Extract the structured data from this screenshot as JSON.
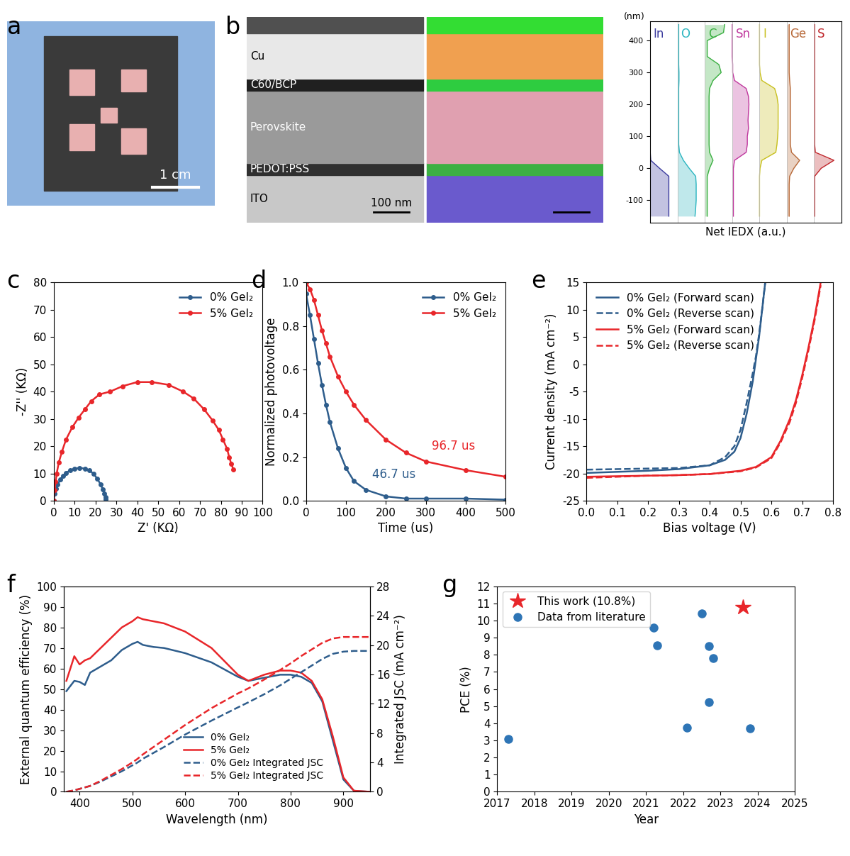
{
  "chart_data": [
    {
      "type": "image",
      "title": "a",
      "annotations": [
        "1 cm"
      ]
    },
    {
      "type": "profile",
      "title": "b",
      "layers": [
        "Cu",
        "C60/BCP",
        "Perovskite",
        "PEDOT:PSS",
        "ITO"
      ],
      "annotations": [
        "100 nm"
      ],
      "ylabel": "(nm)",
      "xlabel": "Net IEDX (a.u.)",
      "y": [
        -150,
        -125,
        -100,
        -75,
        -50,
        -25,
        0,
        25,
        50,
        75,
        100,
        125,
        150,
        175,
        200,
        225,
        250,
        275,
        300,
        325,
        350,
        375,
        400,
        425,
        450
      ],
      "ylim": [
        -170,
        460
      ],
      "yticks": [
        -100,
        0,
        100,
        200,
        300,
        400
      ],
      "tick_labels": "y",
      "series": [
        {
          "name": "In",
          "color": "#3b3b9e",
          "values": [
            0.8,
            0.8,
            0.8,
            0.8,
            0.8,
            0.8,
            0.4,
            0.02,
            0,
            0,
            0,
            0,
            0,
            0,
            0,
            0,
            0,
            0,
            0,
            0,
            0,
            0,
            0,
            0,
            0
          ]
        },
        {
          "name": "O",
          "color": "#2bb5c0",
          "values": [
            0.75,
            0.78,
            0.8,
            0.8,
            0.8,
            0.78,
            0.5,
            0.25,
            0.08,
            0.05,
            0.05,
            0.05,
            0.05,
            0.05,
            0.05,
            0.05,
            0.05,
            0.06,
            0.06,
            0.05,
            0.05,
            0.05,
            0.05,
            0.05,
            0.05
          ]
        },
        {
          "name": "C",
          "color": "#3cb043",
          "values": [
            0.1,
            0.1,
            0.1,
            0.1,
            0.1,
            0.1,
            0.2,
            0.35,
            0.2,
            0.18,
            0.18,
            0.18,
            0.18,
            0.18,
            0.18,
            0.18,
            0.2,
            0.35,
            0.7,
            0.6,
            0.1,
            0.1,
            0.1,
            0.8,
            0.85
          ]
        },
        {
          "name": "Sn",
          "color": "#c0399e",
          "values": [
            0.05,
            0.05,
            0.05,
            0.05,
            0.05,
            0.05,
            0.05,
            0.1,
            0.6,
            0.65,
            0.65,
            0.7,
            0.68,
            0.7,
            0.72,
            0.7,
            0.6,
            0.1,
            0.02,
            0.02,
            0,
            0,
            0,
            0,
            0
          ]
        },
        {
          "name": "I",
          "color": "#c8c020",
          "values": [
            0,
            0,
            0,
            0,
            0,
            0,
            0.02,
            0.1,
            0.7,
            0.75,
            0.78,
            0.8,
            0.8,
            0.8,
            0.8,
            0.75,
            0.65,
            0.1,
            0.02,
            0,
            0,
            0,
            0,
            0,
            0
          ]
        },
        {
          "name": "Ge",
          "color": "#b86a3a",
          "values": [
            0.1,
            0.1,
            0.1,
            0.1,
            0.1,
            0.12,
            0.3,
            0.55,
            0.2,
            0.15,
            0.15,
            0.15,
            0.15,
            0.15,
            0.15,
            0.15,
            0.15,
            0.12,
            0.1,
            0.1,
            0.1,
            0.1,
            0.1,
            0.1,
            0.1
          ]
        },
        {
          "name": "S",
          "color": "#c0282d",
          "values": [
            0.02,
            0.02,
            0.02,
            0.02,
            0.02,
            0.02,
            0.3,
            0.85,
            0.05,
            0.02,
            0.02,
            0.02,
            0.02,
            0.02,
            0.02,
            0.02,
            0.02,
            0.02,
            0.02,
            0.02,
            0.02,
            0.02,
            0.02,
            0.02,
            0.02
          ]
        }
      ]
    },
    {
      "type": "line",
      "title": "c",
      "xlabel": "Z' (KΩ)",
      "ylabel": "-Z'' (KΩ)",
      "xlim": [
        0,
        100
      ],
      "xticks": [
        0,
        10,
        20,
        30,
        40,
        50,
        60,
        70,
        80,
        90,
        100
      ],
      "ylim": [
        0,
        80
      ],
      "yticks": [
        0,
        10,
        20,
        30,
        40,
        50,
        60,
        70,
        80
      ],
      "legend": "upper right",
      "series": [
        {
          "name": "0% GeI₂",
          "color": "#2e5d8c",
          "marker": "circle",
          "line_style": "solid",
          "x": [
            0,
            0.5,
            1.2,
            2,
            3.2,
            4.5,
            6,
            8,
            10,
            12.5,
            15,
            17,
            19,
            21,
            22.5,
            23.5,
            24.3,
            24.8,
            25
          ],
          "values": [
            0,
            2.5,
            4.5,
            6,
            7.7,
            9,
            10.2,
            11.2,
            11.8,
            12,
            11.8,
            11.2,
            10,
            8,
            6,
            4.2,
            2.5,
            1.2,
            0.5
          ]
        },
        {
          "name": "5% GeI₂",
          "color": "#e8262a",
          "marker": "circle",
          "line_style": "solid",
          "x": [
            0,
            0.5,
            1,
            1.5,
            2.5,
            4,
            6,
            9,
            12,
            15,
            18,
            22,
            27,
            33,
            40,
            47,
            55,
            62,
            67,
            72,
            76,
            79,
            81,
            83,
            84,
            85,
            86
          ],
          "values": [
            0,
            4,
            7,
            10,
            14,
            18,
            22.5,
            27,
            30.5,
            33.5,
            36.5,
            39,
            40,
            42,
            43.5,
            43.5,
            42.5,
            40,
            37.5,
            33.5,
            29.5,
            26,
            22.5,
            19,
            16,
            13.5,
            11.5
          ]
        }
      ]
    },
    {
      "type": "line",
      "title": "d",
      "xlabel": "Time (us)",
      "ylabel": "Normalized photovoltage",
      "xlim": [
        0,
        500
      ],
      "xticks": [
        0,
        100,
        200,
        300,
        400,
        500
      ],
      "ylim": [
        0.0,
        1.0
      ],
      "yticks": [
        0.0,
        0.2,
        0.4,
        0.6,
        0.8,
        1.0
      ],
      "legend": "upper right",
      "series": [
        {
          "name": "0% GeI₂",
          "color": "#2e5d8c",
          "marker": "circle",
          "line_style": "solid",
          "annotations": [
            "46.7 us"
          ],
          "x": [
            0,
            10,
            20,
            30,
            40,
            50,
            60,
            80,
            100,
            120,
            150,
            200,
            250,
            300,
            400,
            500
          ],
          "values": [
            0.95,
            0.85,
            0.74,
            0.63,
            0.53,
            0.44,
            0.36,
            0.24,
            0.15,
            0.09,
            0.05,
            0.02,
            0.01,
            0.01,
            0.01,
            0.005
          ]
        },
        {
          "name": "5% GeI₂",
          "color": "#e8262a",
          "marker": "circle",
          "line_style": "solid",
          "annotations": [
            "96.7 us"
          ],
          "x": [
            0,
            10,
            20,
            30,
            40,
            50,
            60,
            80,
            100,
            120,
            150,
            200,
            250,
            300,
            400,
            500
          ],
          "values": [
            1.0,
            0.97,
            0.92,
            0.85,
            0.78,
            0.72,
            0.66,
            0.57,
            0.5,
            0.44,
            0.37,
            0.28,
            0.22,
            0.18,
            0.14,
            0.11
          ]
        }
      ]
    },
    {
      "type": "line",
      "title": "e",
      "xlabel": "Bias voltage (V)",
      "ylabel": "Current density (mA cm⁻²)",
      "xlim": [
        0.0,
        0.8
      ],
      "xticks": [
        0.0,
        0.1,
        0.2,
        0.3,
        0.4,
        0.5,
        0.6,
        0.7,
        0.8
      ],
      "ylim": [
        -25,
        15
      ],
      "yticks": [
        -25,
        -20,
        -15,
        -10,
        -5,
        0,
        5,
        10,
        15
      ],
      "legend": "upper left",
      "series": [
        {
          "name": "0% GeI₂ (Forward scan)",
          "color": "#2e5d8c",
          "marker": "none",
          "line_style": "solid",
          "x": [
            0,
            0.1,
            0.2,
            0.3,
            0.4,
            0.45,
            0.48,
            0.5,
            0.52,
            0.54,
            0.55,
            0.56,
            0.57,
            0.58
          ],
          "values": [
            -19.9,
            -19.7,
            -19.5,
            -19.2,
            -18.5,
            -17.5,
            -16,
            -13.5,
            -9,
            -3,
            1,
            5,
            10,
            15
          ]
        },
        {
          "name": "0% GeI₂ (Reverse scan)",
          "color": "#2e5d8c",
          "marker": "none",
          "line_style": "dashed",
          "x": [
            0,
            0.1,
            0.2,
            0.3,
            0.4,
            0.45,
            0.48,
            0.5,
            0.52,
            0.54,
            0.55,
            0.56,
            0.57,
            0.58
          ],
          "values": [
            -19.3,
            -19.2,
            -19.1,
            -19.0,
            -18.5,
            -17,
            -15,
            -12,
            -7,
            -1.5,
            1.5,
            5.5,
            10,
            15
          ]
        },
        {
          "name": "5% GeI₂ (Forward scan)",
          "color": "#e8262a",
          "marker": "none",
          "line_style": "solid",
          "x": [
            0,
            0.1,
            0.2,
            0.3,
            0.4,
            0.5,
            0.55,
            0.6,
            0.63,
            0.66,
            0.68,
            0.7,
            0.72,
            0.74,
            0.76
          ],
          "values": [
            -20.6,
            -20.5,
            -20.4,
            -20.3,
            -20.1,
            -19.5,
            -18.8,
            -17,
            -14,
            -10,
            -6.5,
            -2,
            3,
            8.5,
            15
          ]
        },
        {
          "name": "5% GeI₂ (Reverse scan)",
          "color": "#e8262a",
          "marker": "none",
          "line_style": "dashed",
          "x": [
            0,
            0.1,
            0.2,
            0.3,
            0.4,
            0.5,
            0.55,
            0.6,
            0.63,
            0.66,
            0.68,
            0.7,
            0.72,
            0.74,
            0.76
          ],
          "values": [
            -20.8,
            -20.6,
            -20.4,
            -20.3,
            -20.1,
            -19.6,
            -18.9,
            -17.2,
            -14.3,
            -10.5,
            -7,
            -2.5,
            2.5,
            8,
            14.5
          ]
        }
      ]
    },
    {
      "type": "line",
      "title": "f",
      "xlabel": "Wavelength (nm)",
      "ylabel": "External quantum efficiency (%)",
      "y2label": "Integrated JSC (mA cm⁻²)",
      "xlim": [
        370,
        950
      ],
      "xticks": [
        400,
        500,
        600,
        700,
        800,
        900
      ],
      "ylim": [
        0,
        100
      ],
      "yticks": [
        0,
        10,
        20,
        30,
        40,
        50,
        60,
        70,
        80,
        90,
        100
      ],
      "y2lim": [
        0,
        28
      ],
      "y2ticks": [
        0,
        4,
        8,
        12,
        16,
        20,
        24,
        28
      ],
      "legend": "lower center",
      "x": [
        375,
        390,
        400,
        410,
        420,
        440,
        460,
        480,
        500,
        510,
        520,
        540,
        560,
        600,
        650,
        700,
        720,
        750,
        780,
        800,
        820,
        840,
        860,
        880,
        900,
        920,
        950
      ],
      "series": [
        {
          "name": "0% GeI₂",
          "color": "#2e5d8c",
          "marker": "none",
          "line_style": "solid",
          "values": [
            49,
            54,
            53.5,
            52,
            58,
            61,
            64,
            69,
            72,
            73,
            71.5,
            70.5,
            70,
            67.5,
            63,
            56,
            54,
            55.5,
            57,
            57,
            56,
            53,
            44,
            25,
            6,
            0.5,
            0
          ]
        },
        {
          "name": "5% GeI₂",
          "color": "#e8262a",
          "marker": "none",
          "line_style": "solid",
          "values": [
            54,
            66,
            62,
            64,
            65,
            70,
            75,
            80,
            83,
            85,
            84,
            83,
            82,
            78,
            70,
            57,
            54,
            57,
            59,
            59,
            58,
            54,
            45,
            27,
            7,
            0.5,
            0
          ]
        },
        {
          "name": "0% GeI₂ Integrated JSC",
          "color": "#2e5d8c",
          "marker": "none",
          "line_style": "dashed",
          "axis": "y2",
          "values": [
            0,
            0.2,
            0.4,
            0.6,
            0.8,
            1.4,
            2.1,
            2.8,
            3.6,
            4.0,
            4.5,
            5.3,
            6.1,
            7.8,
            9.7,
            11.5,
            12.2,
            13.3,
            14.5,
            15.4,
            16.3,
            17.2,
            18.1,
            18.8,
            19.1,
            19.2,
            19.2
          ]
        },
        {
          "name": "5% GeI₂ Integrated JSC",
          "color": "#e8262a",
          "marker": "none",
          "line_style": "dashed",
          "axis": "y2",
          "values": [
            0,
            0.2,
            0.4,
            0.6,
            0.8,
            1.5,
            2.3,
            3.1,
            4.0,
            4.5,
            5.1,
            6.1,
            7.1,
            9.1,
            11.4,
            13.4,
            14.1,
            15.3,
            16.6,
            17.5,
            18.5,
            19.4,
            20.3,
            20.9,
            21.1,
            21.1,
            21.1
          ]
        }
      ]
    },
    {
      "type": "scatter",
      "title": "g",
      "xlabel": "Year",
      "ylabel": "PCE (%)",
      "xlim": [
        2017,
        2025
      ],
      "xticks": [
        2017,
        2018,
        2019,
        2020,
        2021,
        2022,
        2023,
        2024,
        2025
      ],
      "ylim": [
        0,
        12
      ],
      "yticks": [
        0,
        1,
        2,
        3,
        4,
        5,
        6,
        7,
        8,
        9,
        10,
        11,
        12
      ],
      "legend": "upper left",
      "series": [
        {
          "name": "This work (10.8%)",
          "color": "#e8262a",
          "marker": "star",
          "line_style": "none",
          "x": [
            2023.6
          ],
          "values": [
            10.8
          ]
        },
        {
          "name": "Data from literature",
          "color": "#2e75b6",
          "marker": "circle",
          "line_style": "none",
          "x": [
            2017.3,
            2021.2,
            2021.3,
            2022.1,
            2022.5,
            2022.7,
            2022.7,
            2022.8,
            2023.8
          ],
          "values": [
            3.1,
            9.6,
            8.55,
            3.75,
            10.4,
            8.5,
            5.25,
            7.8,
            3.7
          ]
        }
      ]
    }
  ]
}
